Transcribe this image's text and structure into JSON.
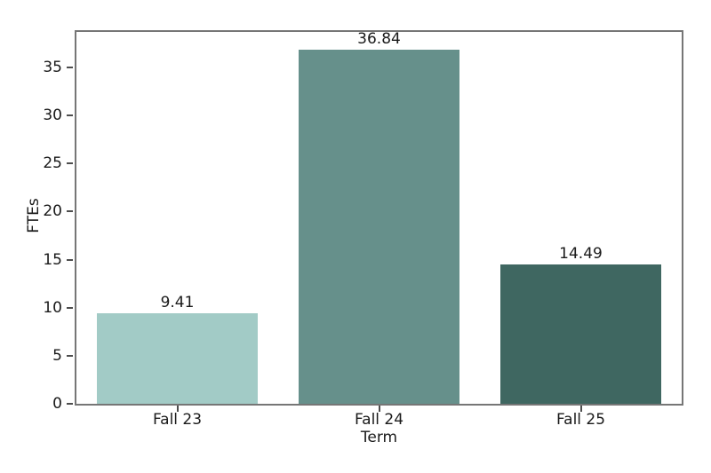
{
  "figure": {
    "background": "#ffffff"
  },
  "chart_data": {
    "type": "bar",
    "title": "",
    "categories": [
      "Fall 23",
      "Fall 24",
      "Fall 25"
    ],
    "values": [
      9.41,
      36.84,
      14.49
    ],
    "value_labels": [
      "9.41",
      "36.84",
      "14.49"
    ],
    "bar_colors": [
      "#a2cbc6",
      "#66908b",
      "#3f6761"
    ],
    "xlabel": "Term",
    "ylabel": "FTEs",
    "ylim": [
      0,
      38.68
    ],
    "yticks": [
      0,
      5,
      10,
      15,
      20,
      25,
      30,
      35
    ],
    "grid": false,
    "legend": "none",
    "bar_width_fraction": 0.8,
    "spine_color": "#767676",
    "tick_color": "#4d4d4d",
    "text_color": "#1a1a1a"
  }
}
